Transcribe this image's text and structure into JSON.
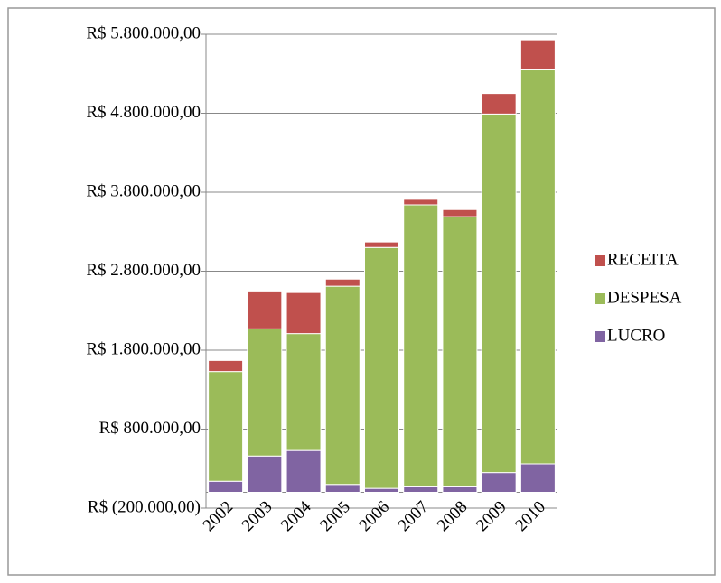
{
  "chart_data": {
    "type": "stacked_bar",
    "categories": [
      "2002",
      "2003",
      "2004",
      "2005",
      "2006",
      "2007",
      "2008",
      "2009",
      "2010"
    ],
    "series": [
      {
        "name": "LUCRO",
        "color": "#8064a2",
        "values": [
          140000,
          460000,
          530000,
          100000,
          50000,
          70000,
          70000,
          250000,
          360000
        ]
      },
      {
        "name": "DESPESA",
        "color": "#9bbb59",
        "values": [
          1390000,
          1610000,
          1480000,
          2510000,
          3050000,
          3570000,
          3420000,
          4540000,
          4990000
        ]
      },
      {
        "name": "RECEITA",
        "color": "#c0504d",
        "values": [
          140000,
          480000,
          520000,
          90000,
          70000,
          70000,
          90000,
          260000,
          380000
        ]
      }
    ],
    "ylim": [
      -200000,
      5800000
    ],
    "yticks": [
      {
        "value": -200000,
        "label": "R$ (200.000,00)"
      },
      {
        "value": 800000,
        "label": "R$ 800.000,00"
      },
      {
        "value": 1800000,
        "label": "R$ 1.800.000,00"
      },
      {
        "value": 2800000,
        "label": "R$ 2.800.000,00"
      },
      {
        "value": 3800000,
        "label": "R$ 3.800.000,00"
      },
      {
        "value": 4800000,
        "label": "R$ 4.800.000,00"
      },
      {
        "value": 5800000,
        "label": "R$ 5.800.000,00"
      }
    ],
    "grid": true,
    "legend": "right"
  }
}
